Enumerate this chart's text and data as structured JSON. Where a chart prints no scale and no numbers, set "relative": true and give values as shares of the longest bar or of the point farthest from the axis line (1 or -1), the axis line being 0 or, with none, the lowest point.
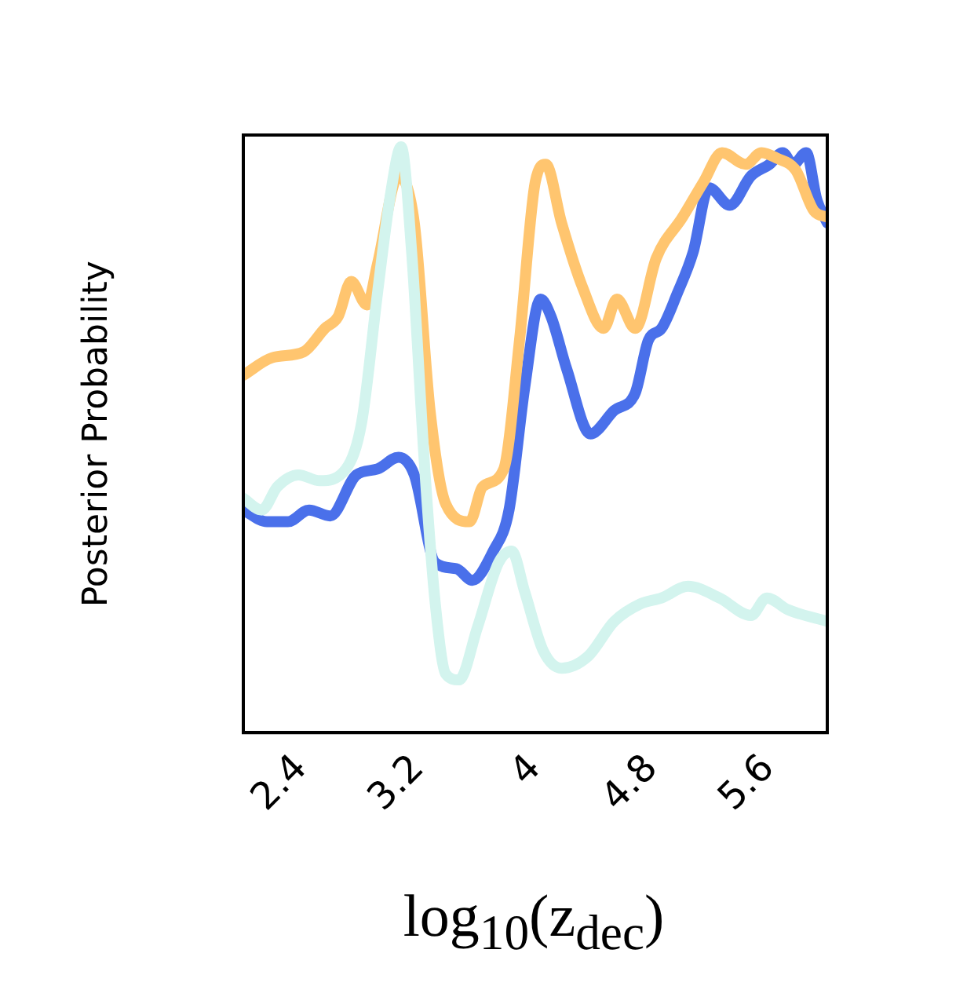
{
  "chart_data": {
    "type": "line",
    "relative": true,
    "xlabel": "log$_{10}$(z$_{dec}$)",
    "ylabel": "Posterior Probability",
    "xlim": [
      2,
      6
    ],
    "xticks": [
      2.4,
      3.2,
      4,
      4.8,
      5.6
    ],
    "grid": false,
    "legend": false,
    "marker": "none",
    "line_style": "solid",
    "series": [
      {
        "color": "#d3f4ee",
        "x": [
          2.0,
          2.126,
          2.234,
          2.378,
          2.523,
          2.703,
          2.811,
          2.919,
          3.009,
          3.081,
          3.153,
          3.243,
          3.315,
          3.387,
          3.477,
          3.604,
          3.748,
          3.838,
          3.928,
          4.054,
          4.18,
          4.36,
          4.541,
          4.721,
          4.865,
          5.045,
          5.261,
          5.477,
          5.586,
          5.73,
          6.0
        ],
        "values": [
          0.4,
          0.38,
          0.42,
          0.44,
          0.43,
          0.45,
          0.53,
          0.75,
          0.92,
          1,
          0.82,
          0.45,
          0.22,
          0.1,
          0.09,
          0.18,
          0.29,
          0.31,
          0.24,
          0.14,
          0.11,
          0.13,
          0.19,
          0.22,
          0.23,
          0.25,
          0.23,
          0.2,
          0.23,
          0.21,
          0.19
        ]
      },
      {
        "color": "#ffc56f",
        "x": [
          2.0,
          2.198,
          2.414,
          2.559,
          2.649,
          2.739,
          2.847,
          2.919,
          3.063,
          3.171,
          3.279,
          3.387,
          3.55,
          3.64,
          3.784,
          3.892,
          4.0,
          4.072,
          4.18,
          4.324,
          4.468,
          4.559,
          4.685,
          4.829,
          5.009,
          5.153,
          5.279,
          5.441,
          5.55,
          5.658,
          5.784,
          5.91,
          6.0
        ],
        "values": [
          0.61,
          0.64,
          0.65,
          0.69,
          0.71,
          0.77,
          0.73,
          0.8,
          0.95,
          0.87,
          0.55,
          0.39,
          0.36,
          0.42,
          0.45,
          0.67,
          0.94,
          0.97,
          0.87,
          0.76,
          0.69,
          0.74,
          0.69,
          0.81,
          0.88,
          0.94,
          0.99,
          0.97,
          0.99,
          0.98,
          0.96,
          0.89,
          0.88
        ]
      },
      {
        "color": "#4a70ea",
        "x": [
          2.0,
          2.162,
          2.306,
          2.45,
          2.595,
          2.775,
          2.919,
          3.063,
          3.171,
          3.315,
          3.459,
          3.568,
          3.712,
          3.82,
          3.928,
          4.036,
          4.108,
          4.216,
          4.378,
          4.541,
          4.685,
          4.775,
          4.865,
          4.973,
          5.081,
          5.189,
          5.333,
          5.477,
          5.604,
          5.694,
          5.766,
          5.856,
          5.928,
          6.0
        ],
        "values": [
          0.38,
          0.36,
          0.36,
          0.38,
          0.37,
          0.44,
          0.45,
          0.47,
          0.44,
          0.29,
          0.28,
          0.26,
          0.31,
          0.38,
          0.59,
          0.74,
          0.71,
          0.62,
          0.51,
          0.55,
          0.58,
          0.67,
          0.69,
          0.75,
          0.82,
          0.93,
          0.9,
          0.95,
          0.97,
          0.99,
          0.97,
          0.99,
          0.91,
          0.87
        ]
      }
    ]
  }
}
